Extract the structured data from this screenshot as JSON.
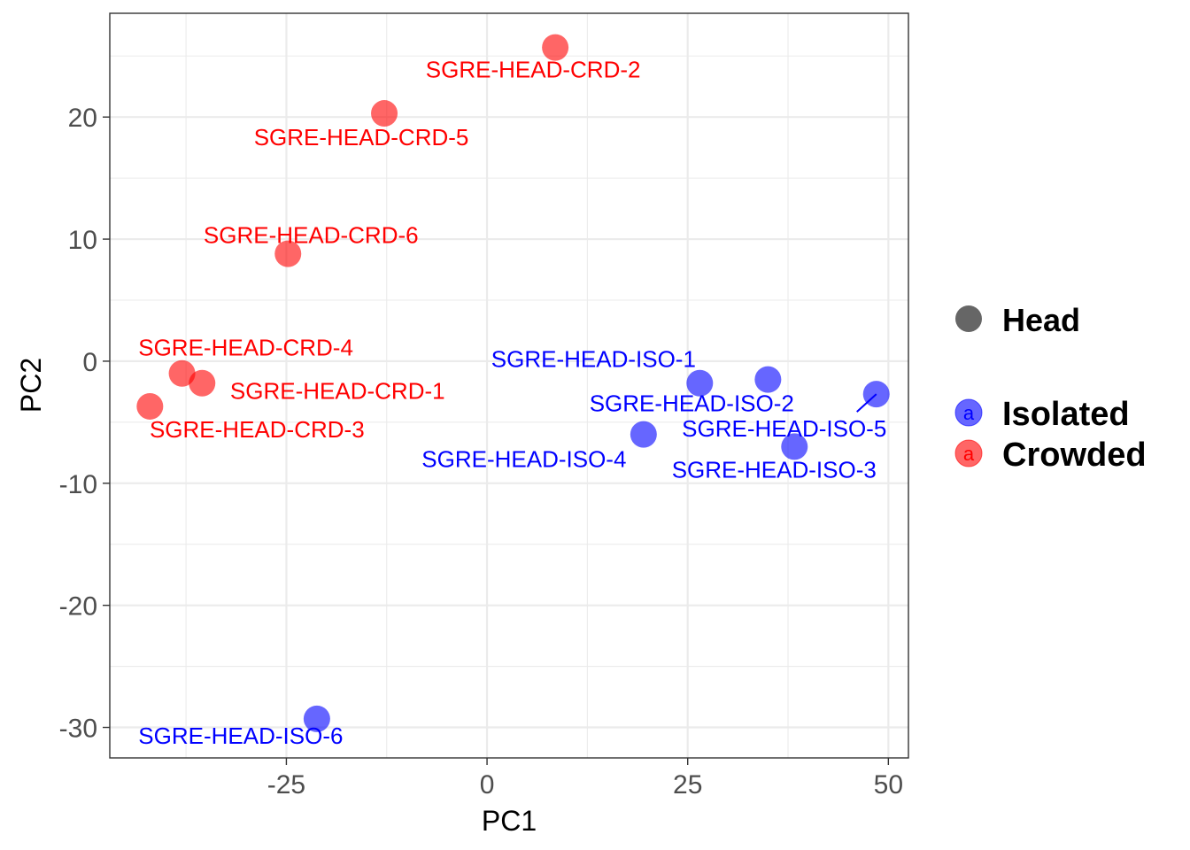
{
  "chart_data": {
    "type": "scatter",
    "title": "",
    "xlabel": "PC1",
    "ylabel": "PC2",
    "xlim": [
      -47,
      52.5
    ],
    "ylim": [
      -32.5,
      28.5
    ],
    "x_ticks": [
      -25,
      0,
      25,
      50
    ],
    "y_ticks": [
      -30,
      -20,
      -10,
      0,
      10,
      20
    ],
    "x_tick_labels": [
      "-25",
      "0",
      "25",
      "50"
    ],
    "y_tick_labels": [
      "-30",
      "-20",
      "-10",
      "0",
      "10",
      "20"
    ],
    "grid": true,
    "legend_position": "right",
    "shape_legend": {
      "title": "Head"
    },
    "color_legend": [
      {
        "name": "Isolated",
        "color": "#0000ff",
        "key_letter": "a"
      },
      {
        "name": "Crowded",
        "color": "#ff0000",
        "key_letter": "a"
      }
    ],
    "series": [
      {
        "name": "Isolated",
        "color": "#0000ff",
        "points": [
          {
            "label": "SGRE-HEAD-ISO-1",
            "x": 35.0,
            "y": -1.5
          },
          {
            "label": "SGRE-HEAD-ISO-2",
            "x": 26.5,
            "y": -1.8
          },
          {
            "label": "SGRE-HEAD-ISO-3",
            "x": 38.3,
            "y": -7.0
          },
          {
            "label": "SGRE-HEAD-ISO-4",
            "x": 19.5,
            "y": -6.0
          },
          {
            "label": "SGRE-HEAD-ISO-5",
            "x": 48.5,
            "y": -2.7
          },
          {
            "label": "SGRE-HEAD-ISO-6",
            "x": -21.2,
            "y": -29.3
          }
        ]
      },
      {
        "name": "Crowded",
        "color": "#ff0000",
        "points": [
          {
            "label": "SGRE-HEAD-CRD-1",
            "x": -35.5,
            "y": -1.8
          },
          {
            "label": "SGRE-HEAD-CRD-2",
            "x": 8.5,
            "y": 25.7
          },
          {
            "label": "SGRE-HEAD-CRD-3",
            "x": -42.0,
            "y": -3.7
          },
          {
            "label": "SGRE-HEAD-CRD-4",
            "x": -38.0,
            "y": -1.0
          },
          {
            "label": "SGRE-HEAD-CRD-5",
            "x": -12.8,
            "y": 20.3
          },
          {
            "label": "SGRE-HEAD-CRD-6",
            "x": -24.8,
            "y": 8.8
          }
        ]
      }
    ]
  }
}
